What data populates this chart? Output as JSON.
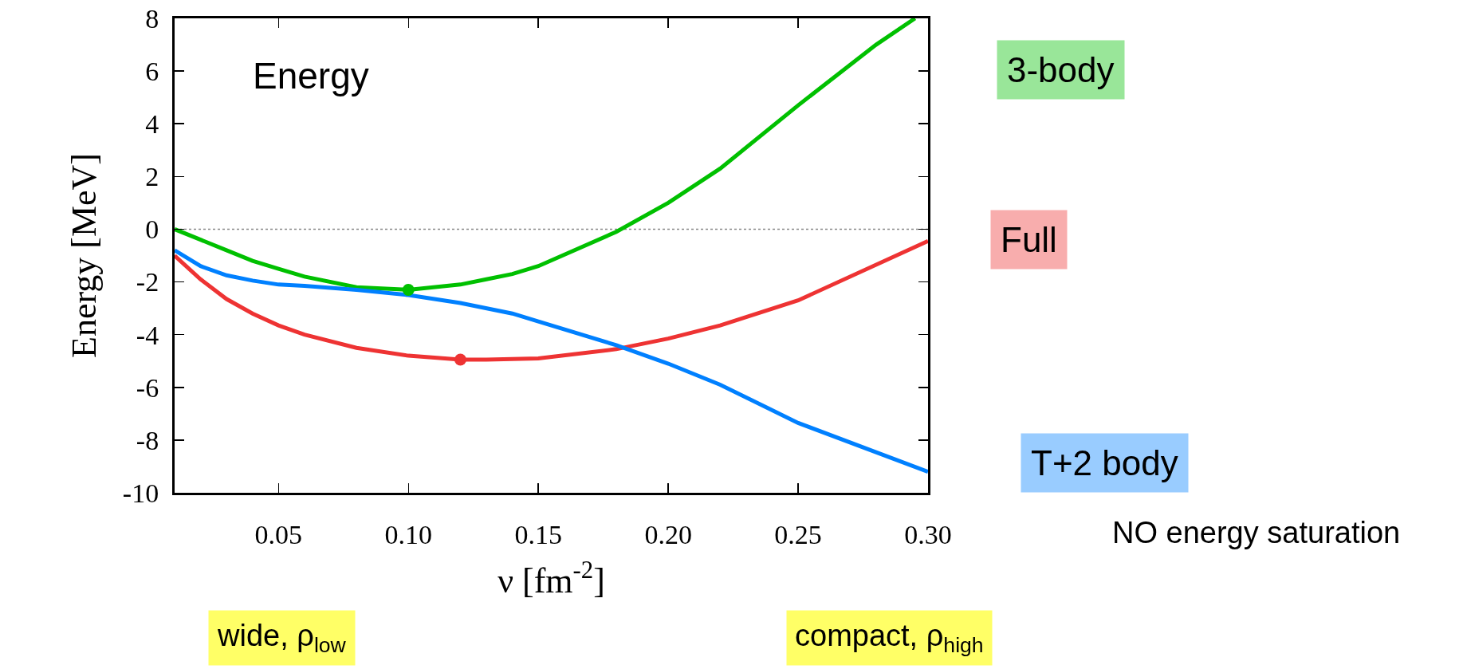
{
  "chart_data": {
    "type": "line",
    "xlabel": "ν [fm$^{-2}$]",
    "ylabel": "Energy [MeV]",
    "xlim": [
      0.01,
      0.3
    ],
    "xticks": [
      0.05,
      {
        "value": 0.1,
        "label": "0.10"
      },
      0.15,
      {
        "value": 0.2,
        "label": "0.20"
      },
      0.25,
      {
        "value": 0.3,
        "label": "0.30"
      }
    ],
    "ylim": [
      -10,
      8
    ],
    "yticks": [
      -10,
      -8,
      -6,
      -4,
      -2,
      0,
      2,
      4,
      6,
      8
    ],
    "grid": false,
    "marker": "none",
    "line_style": "solid",
    "series": [
      {
        "name": "3-body",
        "color": "#00c000",
        "x": [
          0.01,
          0.02,
          0.03,
          0.04,
          0.05,
          0.06,
          0.08,
          0.1,
          0.12,
          0.13,
          0.14,
          0.15,
          0.18,
          0.2,
          0.22,
          0.25,
          0.28,
          0.295
        ],
        "values": [
          0,
          -0.4,
          -0.8,
          -1.2,
          -1.5,
          -1.8,
          -2.2,
          -2.3,
          -2.1,
          -1.9,
          -1.7,
          -1.4,
          -0.1,
          1.0,
          2.3,
          4.7,
          7.0,
          8.0
        ]
      },
      {
        "name": "Full",
        "color": "#ee3333",
        "x": [
          0.01,
          0.02,
          0.03,
          0.04,
          0.05,
          0.06,
          0.08,
          0.1,
          0.12,
          0.13,
          0.15,
          0.18,
          0.2,
          0.22,
          0.25,
          0.3
        ],
        "values": [
          -1.0,
          -1.9,
          -2.65,
          -3.2,
          -3.65,
          -4.0,
          -4.5,
          -4.8,
          -4.95,
          -4.95,
          -4.9,
          -4.55,
          -4.15,
          -3.65,
          -2.7,
          -0.45
        ]
      },
      {
        "name": "T+2 body",
        "color": "#0080ff",
        "x": [
          0.01,
          0.02,
          0.03,
          0.04,
          0.05,
          0.06,
          0.08,
          0.1,
          0.12,
          0.14,
          0.15,
          0.18,
          0.2,
          0.22,
          0.25,
          0.3
        ],
        "values": [
          -0.8,
          -1.4,
          -1.75,
          -1.95,
          -2.1,
          -2.15,
          -2.3,
          -2.5,
          -2.8,
          -3.2,
          -3.5,
          -4.4,
          -5.1,
          -5.9,
          -7.35,
          -9.2
        ]
      },
      {
        "type": "scatter",
        "marker": "circle",
        "color": "#00c000",
        "x": [
          0.1
        ],
        "values": [
          -2.3
        ]
      },
      {
        "type": "scatter",
        "marker": "circle",
        "color": "#ee3333",
        "x": [
          0.12
        ],
        "values": [
          -4.95
        ]
      }
    ],
    "ref_lines": [
      {
        "axis": "y",
        "value": 0,
        "color": "#888888",
        "line_style": "dotted"
      }
    ],
    "annotations": [
      "Energy",
      "NO energy saturation",
      "wide, ρ$_{low}$",
      "compact, ρ$_{high}$"
    ]
  }
}
